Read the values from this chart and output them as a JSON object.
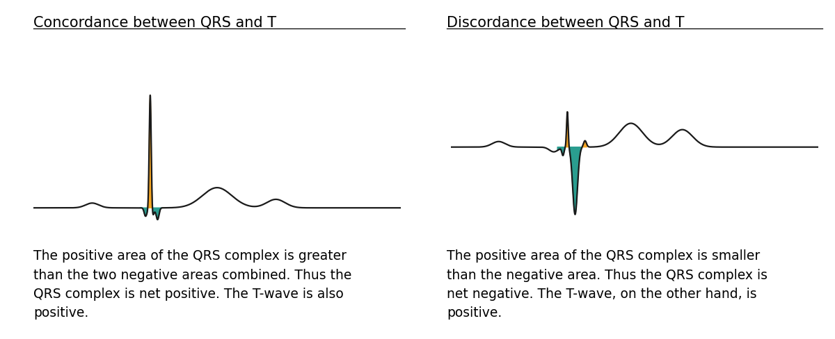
{
  "title_left": "Concordance between QRS and T",
  "title_right": "Discordance between QRS and T",
  "text_left": "The positive area of the QRS complex is greater\nthan the two negative areas combined. Thus the\nQRS complex is net positive. The T-wave is also\npositive.",
  "text_right": "The positive area of the QRS complex is smaller\nthan the negative area. Thus the QRS complex is\nnet negative. The T-wave, on the other hand, is\npositive.",
  "color_orange": "#F5A623",
  "color_teal": "#2A9D8F",
  "color_line": "#1a1a1a",
  "bg_color": "#FFFFFF",
  "title_fontsize": 15,
  "text_fontsize": 13.5
}
